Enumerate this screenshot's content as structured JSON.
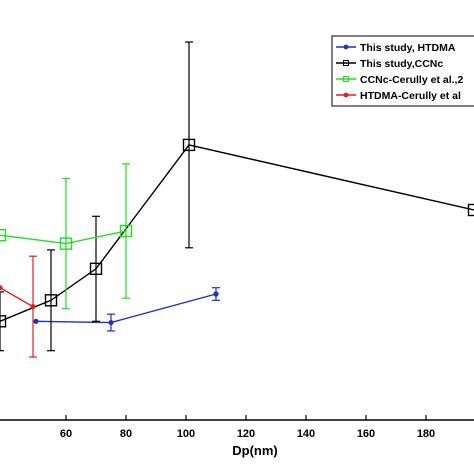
{
  "chart_data": {
    "type": "line",
    "xlabel": "Dp(nm)",
    "ylabel": "",
    "xlim": [
      38,
      196
    ],
    "ylim": [
      0.0,
      1.0
    ],
    "x_ticks": [
      60,
      80,
      100,
      120,
      140,
      160,
      180
    ],
    "grid": false,
    "legend_position": "top-right",
    "series": [
      {
        "name": "This study, HTDMA",
        "color": "#1f2fbf",
        "marker": "dot",
        "x": [
          50,
          75,
          110
        ],
        "y": [
          0.235,
          0.232,
          0.3
        ],
        "err": [
          0,
          0.02,
          0.015
        ]
      },
      {
        "name": "This study,CCNc",
        "color": "#000000",
        "marker": "square",
        "x": [
          38,
          55,
          70,
          101,
          196
        ],
        "y": [
          0.235,
          0.285,
          0.36,
          0.655,
          0.5
        ],
        "err": [
          0.07,
          0.12,
          0.125,
          0.245,
          0
        ]
      },
      {
        "name": "CCNc-Cerully et al.,2",
        "color": "#22dd22",
        "marker": "square",
        "x": [
          38,
          60,
          80
        ],
        "y": [
          0.44,
          0.42,
          0.45
        ],
        "err": [
          0,
          0.155,
          0.16
        ]
      },
      {
        "name": "HTDMA-Cerully et al",
        "color": "#dd1f1f",
        "marker": "dot",
        "x": [
          38,
          49
        ],
        "y": [
          0.315,
          0.27
        ],
        "err": [
          0,
          0.12
        ]
      }
    ]
  }
}
